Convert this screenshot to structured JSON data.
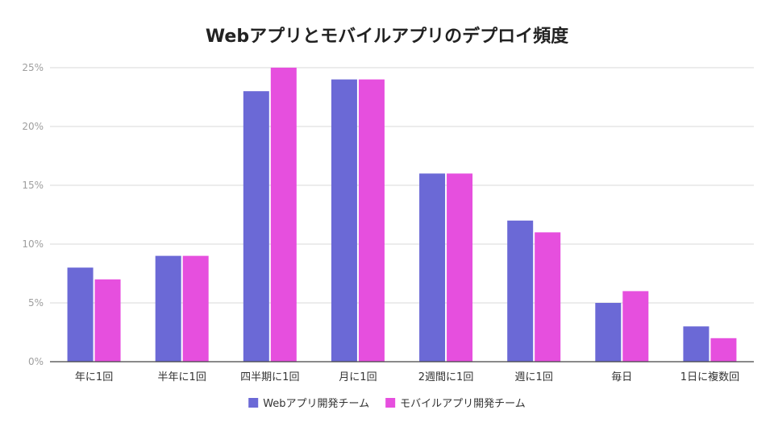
{
  "chart_data": {
    "type": "bar",
    "title": "Webアプリとモバイルアプリのデプロイ頻度",
    "categories": [
      "年に1回",
      "半年に1回",
      "四半期に1回",
      "月に1回",
      "2週間に1回",
      "週に1回",
      "毎日",
      "1日に複数回"
    ],
    "series": [
      {
        "name": "Webアプリ開発チーム",
        "color": "#6b69d6",
        "values": [
          8,
          9,
          23,
          24,
          16,
          12,
          5,
          3
        ]
      },
      {
        "name": "モバイルアプリ開発チーム",
        "color": "#e64fde",
        "values": [
          7,
          9,
          25,
          24,
          16,
          11,
          6,
          2
        ]
      }
    ],
    "y_ticks": [
      "0%",
      "5%",
      "10%",
      "15%",
      "20%",
      "25%"
    ],
    "ylim": [
      0,
      25
    ],
    "grid": true,
    "legend_position": "bottom"
  }
}
